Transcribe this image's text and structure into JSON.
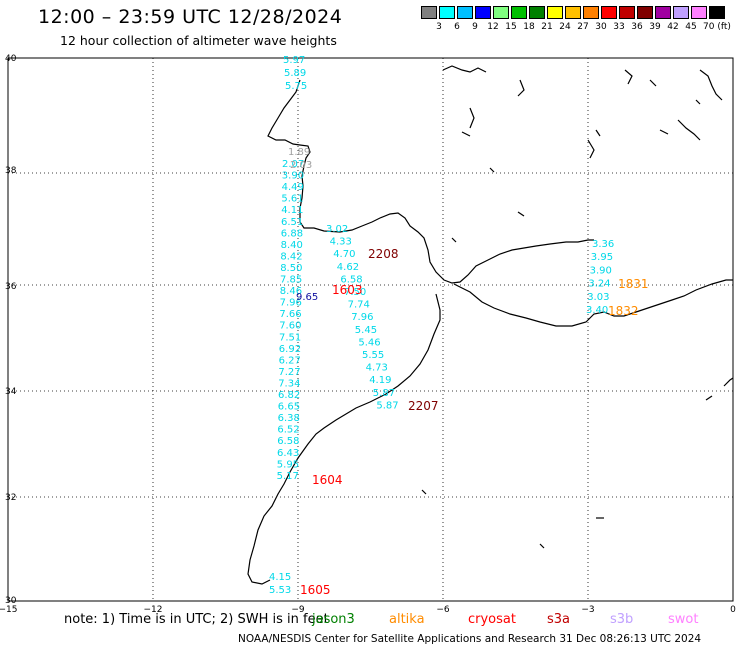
{
  "title": "12:00 – 23:59 UTC 12/28/2024",
  "subtitle": "12 hour collection of altimeter wave heights",
  "colorbar": {
    "colors": [
      "#808080",
      "#00ffff",
      "#00c0ff",
      "#0000ff",
      "#80ff80",
      "#00c000",
      "#008000",
      "#ffff00",
      "#ffc000",
      "#ff8000",
      "#ff0000",
      "#c00000",
      "#800000",
      "#a000a0",
      "#c0a0ff",
      "#ff80ff",
      "#000000"
    ],
    "labels": [
      "3",
      "6",
      "9",
      "12",
      "15",
      "18",
      "21",
      "24",
      "27",
      "30",
      "33",
      "36",
      "39",
      "42",
      "45",
      "70 (ft)"
    ]
  },
  "axes": {
    "lat_labels": [
      "40",
      "38",
      "36",
      "34",
      "32",
      "30"
    ],
    "lon_labels": [
      "−15",
      "−12",
      "−9",
      "−6",
      "−3",
      "0"
    ]
  },
  "tracks": [
    {
      "color": "#00d8e8",
      "values": [
        "5.97",
        "5.89",
        "5.75"
      ]
    },
    {
      "color": "#00d8e8",
      "values": [
        "2.07",
        "3.90",
        "4.49",
        "5.61",
        "4.11",
        "6.51",
        "6.88",
        "8.40",
        "8.42",
        "8.50",
        "7.85",
        "8.46",
        "7.96",
        "7.66",
        "7.60",
        "7.51",
        "6.92",
        "6.27",
        "7.27",
        "7.34",
        "6.82",
        "6.65",
        "6.38",
        "6.52",
        "6.58",
        "6.43",
        "5.95",
        "5.17"
      ]
    },
    {
      "color": "#a0a0a0",
      "values": [
        "1.89",
        "2.03"
      ]
    },
    {
      "color": "#1010a0",
      "values": [
        "9.65"
      ]
    },
    {
      "color": "#00d8e8",
      "values": [
        "3.02",
        "4.33",
        "4.70",
        "4.62",
        "6.58",
        "7.50",
        "7.74",
        "7.96",
        "5.45",
        "5.46",
        "5.55",
        "4.73",
        "4.19",
        "5.87",
        "5.87"
      ]
    },
    {
      "color": "#00d8e8",
      "values": [
        "3.36",
        "3.95",
        "3.90",
        "3.24",
        "3.03",
        "3.40"
      ]
    },
    {
      "color": "#00d8e8",
      "values": [
        "4.15",
        "5.53"
      ]
    }
  ],
  "time_labels": [
    {
      "text": "2208",
      "color": "#800000"
    },
    {
      "text": "1603",
      "color": "#ff0000"
    },
    {
      "text": "2207",
      "color": "#800000"
    },
    {
      "text": "1604",
      "color": "#ff0000"
    },
    {
      "text": "1605",
      "color": "#ff0000"
    },
    {
      "text": "1831",
      "color": "#ff8c00"
    },
    {
      "text": "1832",
      "color": "#ff8c00"
    }
  ],
  "footer": {
    "note": "note:  1) Time is in UTC;  2) SWH is in feet",
    "satellites": [
      {
        "name": "jason3",
        "color": "#008000"
      },
      {
        "name": "altika",
        "color": "#ff8c00"
      },
      {
        "name": "cryosat",
        "color": "#ff0000"
      },
      {
        "name": "s3a",
        "color": "#c00000"
      },
      {
        "name": "s3b",
        "color": "#c0a0ff"
      },
      {
        "name": "swot",
        "color": "#ff80ff"
      }
    ],
    "credit": "NOAA/NESDIS Center for Satellite Applications and Research    31 Dec 08:26:13 UTC 2024"
  }
}
